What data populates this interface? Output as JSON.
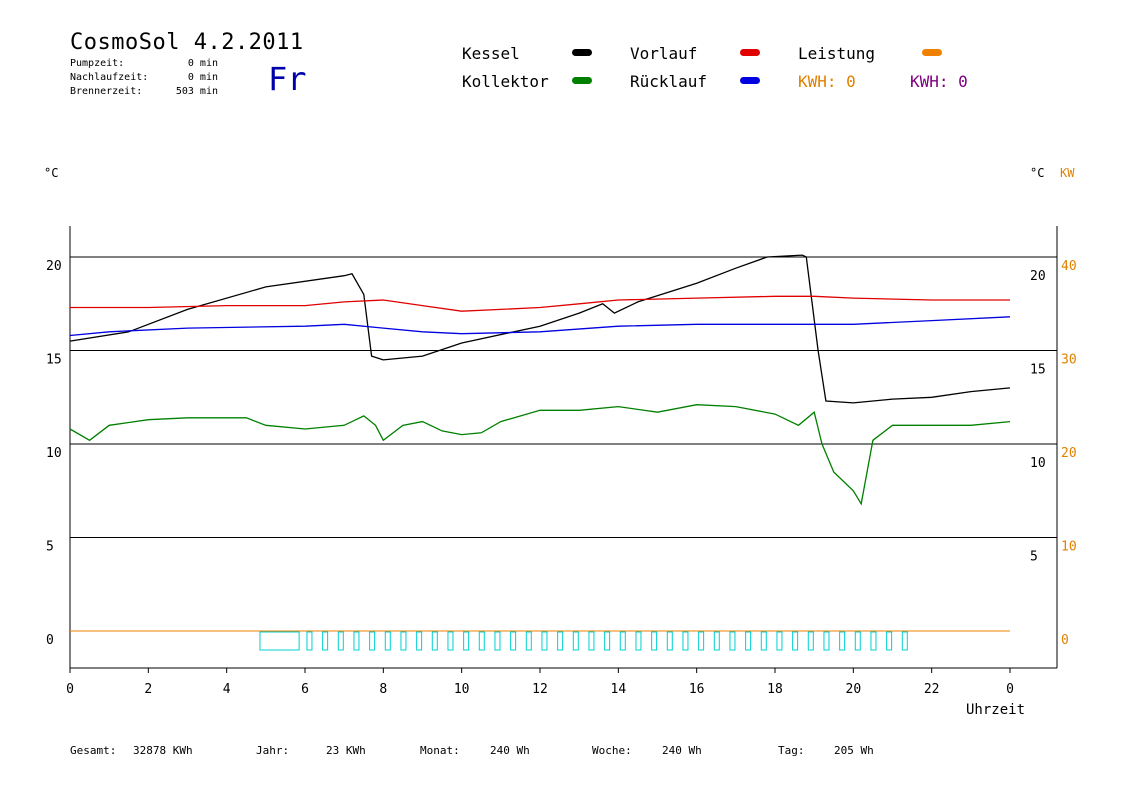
{
  "header": {
    "title": "CosmoSol 4.2.2011",
    "day": "Fr",
    "stats": [
      {
        "label": "Pumpzeit:",
        "value": "0 min"
      },
      {
        "label": "Nachlaufzeit:",
        "value": "0 min"
      },
      {
        "label": "Brennerzeit:",
        "value": "503 min"
      }
    ]
  },
  "legend": {
    "items": [
      {
        "label": "Kessel",
        "color": "#000000"
      },
      {
        "label": "Vorlauf",
        "color": "#e00000"
      },
      {
        "label": "Leistung",
        "color": "#f08000"
      },
      {
        "label": "Kollektor",
        "color": "#008000"
      },
      {
        "label": "Rücklauf",
        "color": "#0000e0"
      }
    ],
    "kwh_orange": "KWH: 0",
    "kwh_purple": "KWH: 0",
    "kwh_orange_color": "#e08000",
    "kwh_purple_color": "#800080"
  },
  "axes": {
    "left_unit": "°C",
    "right_unit": "°C",
    "right_unit_kw": "KW",
    "x_label": "Uhrzeit"
  },
  "footer": {
    "gesamt_label": "Gesamt:",
    "gesamt_value": "32878 KWh",
    "jahr_label": "Jahr:",
    "jahr_value": "23 KWh",
    "monat_label": "Monat:",
    "monat_value": "240 Wh",
    "woche_label": "Woche:",
    "woche_value": "240 Wh",
    "tag_label": "Tag:",
    "tag_value": "205 Wh"
  },
  "chart_data": {
    "type": "line",
    "xlabel": "Uhrzeit",
    "ylabel": "°C",
    "xlim": [
      0,
      24
    ],
    "ylim": [
      -2,
      22
    ],
    "x_ticks": [
      "0",
      "2",
      "4",
      "6",
      "8",
      "10",
      "12",
      "14",
      "16",
      "18",
      "20",
      "22",
      "0"
    ],
    "y_ticks_left": [
      0,
      5,
      10,
      15,
      20
    ],
    "y_ticks_right_c": [
      5,
      10,
      15,
      20
    ],
    "y_ticks_right_kw": [
      0,
      10,
      20,
      30,
      40
    ],
    "grid": true,
    "series": [
      {
        "name": "Kessel",
        "color": "#000000",
        "points": [
          [
            0,
            15.5
          ],
          [
            1.5,
            16.0
          ],
          [
            3,
            17.2
          ],
          [
            5,
            18.4
          ],
          [
            7,
            19.0
          ],
          [
            7.2,
            19.1
          ],
          [
            7.5,
            18.0
          ],
          [
            7.7,
            14.7
          ],
          [
            8,
            14.5
          ],
          [
            9,
            14.7
          ],
          [
            10,
            15.4
          ],
          [
            12,
            16.3
          ],
          [
            13,
            17.0
          ],
          [
            13.6,
            17.5
          ],
          [
            13.9,
            17.0
          ],
          [
            14.5,
            17.6
          ],
          [
            16,
            18.6
          ],
          [
            17,
            19.4
          ],
          [
            17.8,
            20.0
          ],
          [
            18.7,
            20.1
          ],
          [
            18.8,
            20.0
          ],
          [
            19.1,
            15.0
          ],
          [
            19.3,
            12.3
          ],
          [
            20,
            12.2
          ],
          [
            21,
            12.4
          ],
          [
            22,
            12.5
          ],
          [
            23,
            12.8
          ],
          [
            24,
            13.0
          ]
        ]
      },
      {
        "name": "Vorlauf",
        "color": "#e00000",
        "points": [
          [
            0,
            17.3
          ],
          [
            2,
            17.3
          ],
          [
            4,
            17.4
          ],
          [
            6,
            17.4
          ],
          [
            7,
            17.6
          ],
          [
            8,
            17.7
          ],
          [
            9,
            17.4
          ],
          [
            10,
            17.1
          ],
          [
            11,
            17.2
          ],
          [
            12,
            17.3
          ],
          [
            13,
            17.5
          ],
          [
            14,
            17.7
          ],
          [
            16,
            17.8
          ],
          [
            18,
            17.9
          ],
          [
            19,
            17.9
          ],
          [
            20,
            17.8
          ],
          [
            22,
            17.7
          ],
          [
            24,
            17.7
          ]
        ]
      },
      {
        "name": "Rücklauf",
        "color": "#0000e0",
        "points": [
          [
            0,
            15.8
          ],
          [
            1,
            16.0
          ],
          [
            3,
            16.2
          ],
          [
            6,
            16.3
          ],
          [
            7,
            16.4
          ],
          [
            8,
            16.2
          ],
          [
            9,
            16.0
          ],
          [
            10,
            15.9
          ],
          [
            12,
            16.0
          ],
          [
            14,
            16.3
          ],
          [
            16,
            16.4
          ],
          [
            18,
            16.4
          ],
          [
            20,
            16.4
          ],
          [
            22,
            16.6
          ],
          [
            24,
            16.8
          ]
        ]
      },
      {
        "name": "Kollektor",
        "color": "#008000",
        "points": [
          [
            0,
            10.8
          ],
          [
            0.5,
            10.2
          ],
          [
            1,
            11.0
          ],
          [
            2,
            11.3
          ],
          [
            3,
            11.4
          ],
          [
            4,
            11.4
          ],
          [
            4.5,
            11.4
          ],
          [
            5,
            11.0
          ],
          [
            6,
            10.8
          ],
          [
            7,
            11.0
          ],
          [
            7.5,
            11.5
          ],
          [
            7.8,
            11.0
          ],
          [
            8,
            10.2
          ],
          [
            8.5,
            11.0
          ],
          [
            9,
            11.2
          ],
          [
            9.5,
            10.7
          ],
          [
            10,
            10.5
          ],
          [
            10.5,
            10.6
          ],
          [
            11,
            11.2
          ],
          [
            12,
            11.8
          ],
          [
            13,
            11.8
          ],
          [
            14,
            12.0
          ],
          [
            15,
            11.7
          ],
          [
            16,
            12.1
          ],
          [
            17,
            12.0
          ],
          [
            18,
            11.6
          ],
          [
            18.6,
            11.0
          ],
          [
            19,
            11.7
          ],
          [
            19.2,
            10.0
          ],
          [
            19.5,
            8.5
          ],
          [
            20,
            7.5
          ],
          [
            20.2,
            6.8
          ],
          [
            20.5,
            10.2
          ],
          [
            21,
            11.0
          ],
          [
            22,
            11.0
          ],
          [
            23,
            11.0
          ],
          [
            24,
            11.2
          ]
        ]
      },
      {
        "name": "Leistung",
        "color": "#f08000",
        "points": [
          [
            0,
            0
          ],
          [
            24,
            0
          ]
        ]
      }
    ]
  }
}
